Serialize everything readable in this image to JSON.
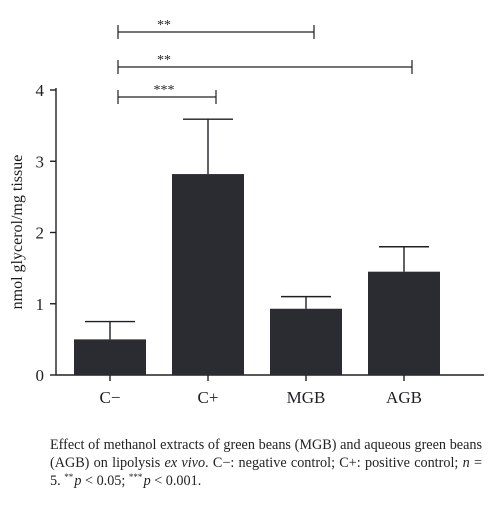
{
  "chart_data": {
    "type": "bar",
    "categories": [
      "C−",
      "C+",
      "MGB",
      "AGB"
    ],
    "values": [
      0.5,
      2.82,
      0.93,
      1.45
    ],
    "errors": [
      0.25,
      0.77,
      0.17,
      0.35
    ],
    "ylabel": "nmol glycerol/mg tissue",
    "xlabel": "",
    "ylim": [
      0,
      4
    ],
    "yticks": [
      0,
      1,
      2,
      3,
      4
    ],
    "bar_color": "#2b2c31",
    "grid": false,
    "significance": [
      {
        "from": "C−",
        "to": "MGB",
        "label": "**"
      },
      {
        "from": "C−",
        "to": "AGB",
        "label": "**"
      },
      {
        "from": "C−",
        "to": "C+",
        "label": "***"
      }
    ]
  },
  "caption": {
    "part1": "Effect of methanol extracts of green beans (MGB) and aqueous green beans (AGB) on lipolysis ",
    "italic1": "ex vivo",
    "part2": ". C−: negative control; C+: positive control; ",
    "italic_n": "n",
    "part3": " = 5. ",
    "sup1": "**",
    "italic_p1": "p",
    "part4": " < 0.05; ",
    "sup2": "***",
    "italic_p2": "p",
    "part5": " < 0.001."
  }
}
